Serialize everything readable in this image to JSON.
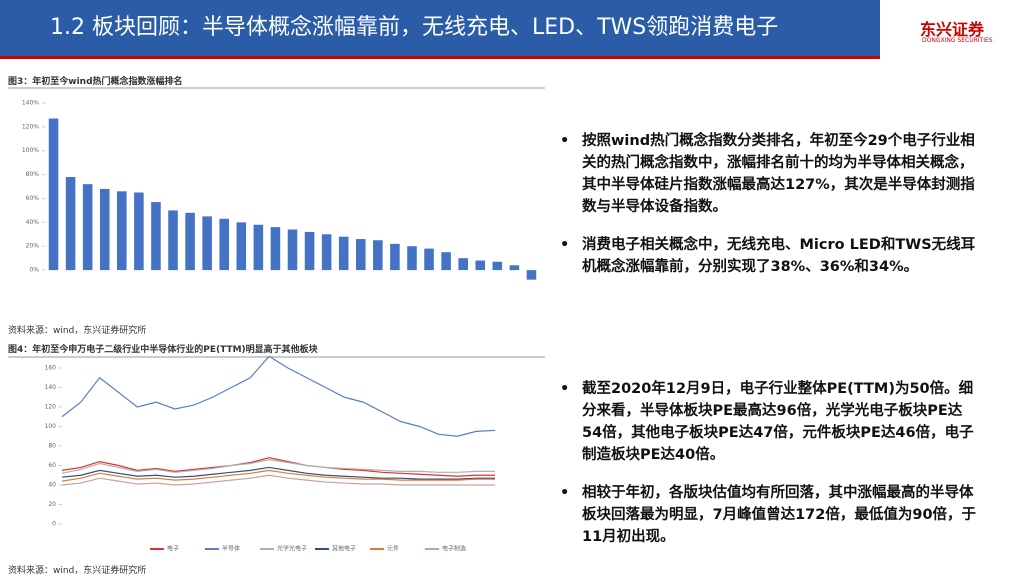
{
  "header": {
    "title": "1.2 板块回顾：半导体概念涨幅靠前，无线充电、LED、TWS领跑消费电子",
    "logo": "东兴证券",
    "logo_en": "DONGXING SECURITIES"
  },
  "bullets": [
    "按照wind热门概念指数分类排名，年初至今29个电子行业相关的热门概念指数中，涨幅排名前十的均为半导体相关概念，其中半导体硅片指数涨幅最高达127%，其次是半导体封测指数与半导体设备指数。",
    "消费电子相关概念中，无线充电、Micro LED和TWS无线耳机概念涨幅靠前，分别实现了38%、36%和34%。",
    "截至2020年12月9日，电子行业整体PE(TTM)为50倍。细分来看，半导体板块PE最高达96倍，光学光电子板块PE达54倍，其他电子板块PE达47倍，元件板块PE达46倍，电子制造板块PE达40倍。",
    "相较于年初，各版块估值均有所回落，其中涨幅最高的半导体板块回落最为明显，7月峰值曾达172倍，最低值为90倍，于11月初出现。"
  ],
  "chart_data": [
    {
      "type": "bar",
      "title": "图3：年初至今wind热门概念指数涨幅排名",
      "source": "资料来源：wind，东兴证券研究所",
      "color": "#4472c4",
      "values": [
        127,
        78,
        72,
        68,
        66,
        65,
        57,
        50,
        48,
        45,
        43,
        40,
        38,
        36,
        34,
        32,
        30,
        28,
        26,
        25,
        22,
        20,
        18,
        15,
        10,
        8,
        7,
        4,
        -8
      ],
      "ylim": [
        -15,
        140
      ],
      "yticks": [
        {
          "value": 0,
          "label": "0%"
        },
        {
          "value": 20,
          "label": "20%"
        },
        {
          "value": 40,
          "label": "40%"
        },
        {
          "value": 60,
          "label": "60%"
        },
        {
          "value": 80,
          "label": "80%"
        },
        {
          "value": 100,
          "label": "100%"
        },
        {
          "value": 120,
          "label": "120%"
        },
        {
          "value": 140,
          "label": "140%"
        }
      ]
    },
    {
      "type": "line",
      "title": "图4：年初至今申万电子二级行业中半导体行业的PE(TTM)明显高于其他板块",
      "source": "资料来源：wind，东兴证券研究所",
      "ylim": [
        0,
        160
      ],
      "yticks": [
        0,
        20,
        40,
        60,
        80,
        100,
        120,
        140,
        160
      ],
      "series": [
        {
          "name": "电子",
          "color": "#e03030",
          "values": [
            55,
            58,
            64,
            60,
            55,
            57,
            54,
            56,
            58,
            60,
            63,
            68,
            64,
            60,
            58,
            56,
            55,
            53,
            52,
            51,
            50,
            49,
            50,
            50
          ]
        },
        {
          "name": "半导体",
          "color": "#5b7fbf",
          "values": [
            110,
            125,
            150,
            135,
            120,
            125,
            118,
            122,
            130,
            140,
            150,
            172,
            160,
            150,
            140,
            130,
            125,
            115,
            105,
            100,
            92,
            90,
            95,
            96
          ]
        },
        {
          "name": "光学光电子",
          "color": "#b0b0b0",
          "values": [
            52,
            56,
            62,
            58,
            54,
            56,
            53,
            55,
            57,
            60,
            62,
            66,
            63,
            60,
            58,
            57,
            56,
            55,
            54,
            54,
            53,
            53,
            54,
            54
          ]
        },
        {
          "name": "其他电子",
          "color": "#2f4f8f",
          "values": [
            48,
            50,
            55,
            52,
            49,
            50,
            48,
            49,
            51,
            53,
            55,
            58,
            55,
            52,
            50,
            49,
            48,
            47,
            47,
            46,
            46,
            46,
            47,
            47
          ]
        },
        {
          "name": "元件",
          "color": "#e07b30",
          "values": [
            44,
            47,
            52,
            49,
            46,
            47,
            45,
            46,
            48,
            50,
            52,
            55,
            52,
            50,
            48,
            47,
            46,
            46,
            45,
            45,
            45,
            45,
            46,
            46
          ]
        },
        {
          "name": "电子制造",
          "color": "#c9a0a0",
          "values": [
            40,
            42,
            47,
            44,
            41,
            42,
            40,
            41,
            43,
            45,
            47,
            50,
            47,
            45,
            43,
            42,
            41,
            41,
            40,
            40,
            40,
            40,
            40,
            40
          ]
        }
      ]
    }
  ]
}
